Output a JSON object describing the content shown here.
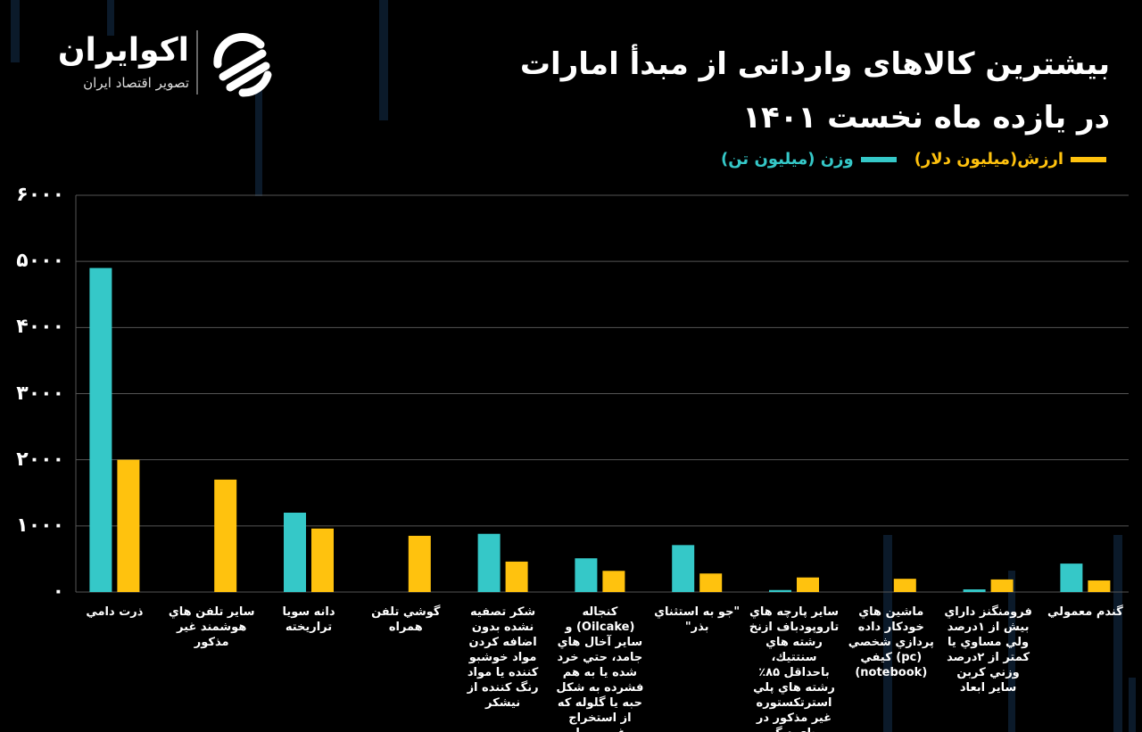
{
  "chart_data": {
    "type": "bar",
    "title": [
      "بیشترین کالاهای وارداتی از مبدأ امارات",
      "در یازده ماه نخست ۱۴۰۱"
    ],
    "logo": {
      "name": "اکوایران",
      "tagline": "تصویر اقتصاد ایران"
    },
    "categories": [
      "ذرت دامي",
      "ساير تلفن هاي هوشمند غير مذكور",
      "دانه سويا تراريخته",
      "گوشي تلفن همراه",
      "شكر تصفيه نشده بدون اضافه كردن مواد خوشبو كننده يا مواد رنگ كننده از نيشكر",
      "كنجاله (Oilcake) و ساير آخال هاي جامد، حتي خرد شده يا به هم فشرده به شكل حبه يا گلوله كه از استخراج روغن سويا به دست مي آيد.",
      "\"جو به استثناي بذر\"",
      "ساير پارچه هاي تاروپودباف ازنخ رشته هاي سنتتيك، باحداقل ۸۵٪ رشته هاي پلي استرتكستوره غير مذكور در جاي ديگر",
      "ماشين هاي خودكار داده پردازي شخصي (pc) كيفي (notebook)",
      "فرومنگنز داراي بيش از ۱درصد ولي مساوي يا كمتر از ۲درصد وزني كربن ساير ابعاد",
      "گندم معمولي"
    ],
    "series": [
      {
        "name": "وزن (میلیون تن)",
        "color": "#35c8c8",
        "values": [
          4900,
          0,
          1200,
          0,
          880,
          510,
          710,
          30,
          0,
          40,
          430
        ]
      },
      {
        "name": "ارزش(میلیون دلار)",
        "color": "#ffc20e",
        "values": [
          2000,
          1700,
          960,
          850,
          460,
          320,
          280,
          220,
          200,
          190,
          175
        ]
      }
    ],
    "ylim": [
      0,
      6000
    ],
    "yticks": [
      {
        "value": 0,
        "label": "۰"
      },
      {
        "value": 1000,
        "label": "۱۰۰۰"
      },
      {
        "value": 2000,
        "label": "۲۰۰۰"
      },
      {
        "value": 3000,
        "label": "۳۰۰۰"
      },
      {
        "value": 4000,
        "label": "۴۰۰۰"
      },
      {
        "value": 5000,
        "label": "۵۰۰۰"
      },
      {
        "value": 6000,
        "label": "۶۰۰۰"
      }
    ],
    "grid": true
  }
}
